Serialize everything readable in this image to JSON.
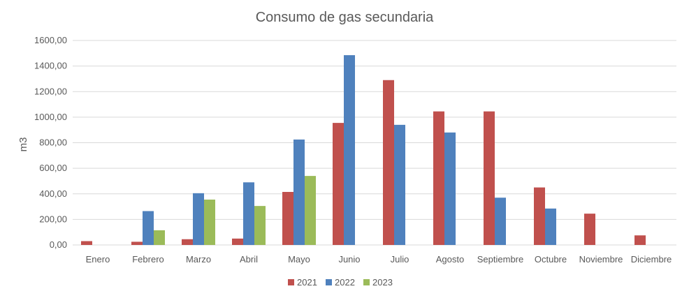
{
  "chart_data": {
    "type": "bar",
    "title": "Consumo de gas secundaria",
    "xlabel": "",
    "ylabel": "m3",
    "ylim": [
      0,
      1600
    ],
    "yticks": [
      "0,00",
      "200,00",
      "400,00",
      "600,00",
      "800,00",
      "1000,00",
      "1200,00",
      "1400,00",
      "1600,00"
    ],
    "categories": [
      "Enero",
      "Febrero",
      "Marzo",
      "Abril",
      "Mayo",
      "Junio",
      "Julio",
      "Agosto",
      "Septiembre",
      "Octubre",
      "Noviembre",
      "Diciembre"
    ],
    "series": [
      {
        "name": "2021",
        "color": "#c0504d",
        "values": [
          30,
          25,
          45,
          50,
          415,
          955,
          1290,
          1045,
          1045,
          450,
          245,
          75
        ]
      },
      {
        "name": "2022",
        "color": "#4f81bd",
        "values": [
          null,
          265,
          405,
          490,
          825,
          1485,
          940,
          880,
          370,
          285,
          null,
          null
        ]
      },
      {
        "name": "2023",
        "color": "#9bbb59",
        "values": [
          null,
          115,
          355,
          305,
          540,
          null,
          null,
          null,
          null,
          null,
          null,
          null
        ]
      }
    ],
    "grid": true,
    "legend": "bottom"
  }
}
